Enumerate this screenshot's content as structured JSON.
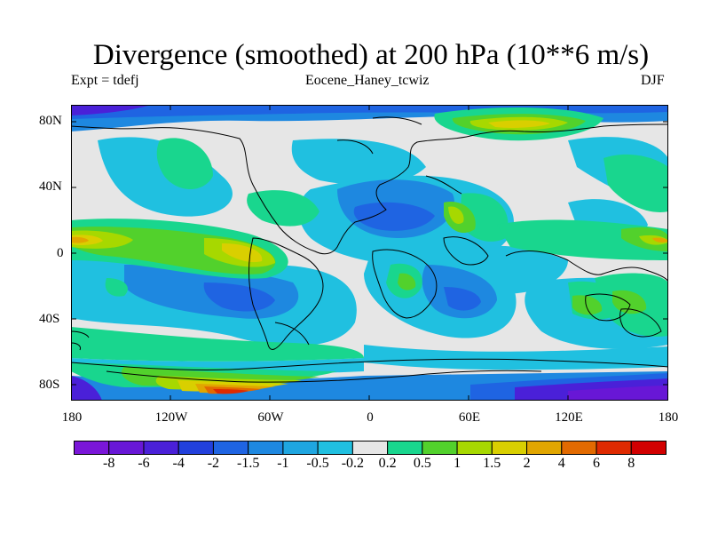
{
  "title": "Divergence (smoothed) at 200 hPa (10**6 m/s)",
  "experiment": "Expt = tdefj",
  "case_name": "Eocene_Haney_tcwiz",
  "season": "DJF",
  "lat_labels": [
    "80N",
    "40N",
    "0",
    "40S",
    "80S"
  ],
  "lon_labels": [
    "180",
    "120W",
    "60W",
    "0",
    "60E",
    "120E",
    "180"
  ],
  "colorbar": {
    "labels": [
      "-8",
      "-6",
      "-4",
      "-2",
      "-1.5",
      "-1",
      "-0.5",
      "-0.2",
      "0.2",
      "0.5",
      "1",
      "1.5",
      "2",
      "4",
      "6",
      "8"
    ],
    "colors": [
      "#7a16d8",
      "#6817d6",
      "#4a20d8",
      "#2240dc",
      "#1f64e2",
      "#1e88e0",
      "#1fa6e0",
      "#20c0e0",
      "#e6e6e6",
      "#19d68e",
      "#52d12c",
      "#a7d800",
      "#d9cf00",
      "#e1a600",
      "#e26a00",
      "#df2a00",
      "#d20000"
    ]
  }
}
